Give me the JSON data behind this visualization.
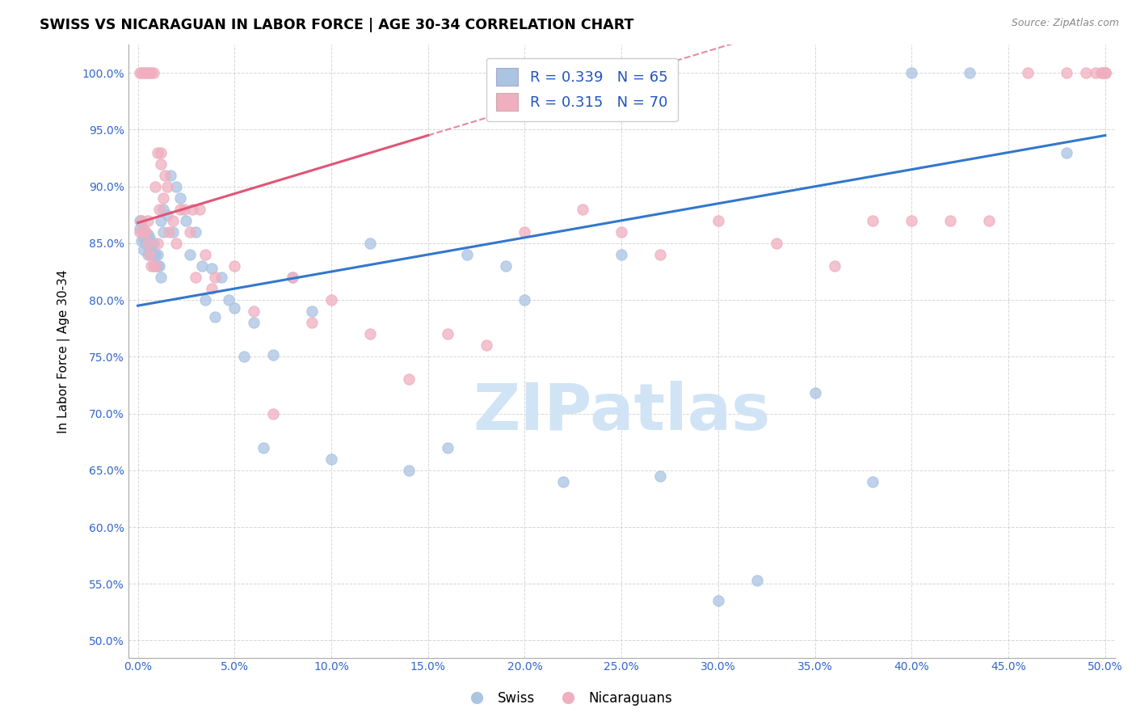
{
  "title": "SWISS VS NICARAGUAN IN LABOR FORCE | AGE 30-34 CORRELATION CHART",
  "source": "Source: ZipAtlas.com",
  "ylabel": "In Labor Force | Age 30-34",
  "xlim": [
    -0.005,
    0.505
  ],
  "ylim": [
    0.485,
    1.025
  ],
  "xticks": [
    0.0,
    0.05,
    0.1,
    0.15,
    0.2,
    0.25,
    0.3,
    0.35,
    0.4,
    0.45,
    0.5
  ],
  "ytick_positions": [
    0.5,
    0.55,
    0.6,
    0.65,
    0.7,
    0.75,
    0.8,
    0.85,
    0.9,
    0.95,
    1.0
  ],
  "ytick_labels": [
    "50.0%",
    "55.0%",
    "60.0%",
    "65.0%",
    "70.0%",
    "75.0%",
    "80.0%",
    "85.0%",
    "90.0%",
    "95.0%",
    "100.0%"
  ],
  "xtick_labels": [
    "0.0%",
    "5.0%",
    "10.0%",
    "15.0%",
    "20.0%",
    "25.0%",
    "30.0%",
    "35.0%",
    "40.0%",
    "45.0%",
    "50.0%"
  ],
  "blue_R": 0.339,
  "blue_N": 65,
  "pink_R": 0.315,
  "pink_N": 70,
  "blue_color": "#aac4e2",
  "pink_color": "#f0afc0",
  "blue_line_color": "#3377cc",
  "pink_line_color": "#e05575",
  "legend_R_color": "#2255bb",
  "watermark": "ZIPatlas",
  "watermark_color": "#d0e4f5",
  "blue_line_x0": 0.0,
  "blue_line_y0": 0.795,
  "blue_line_x1": 0.5,
  "blue_line_y1": 0.945,
  "pink_line_x0": 0.0,
  "pink_line_y0": 0.868,
  "pink_line_x1": 0.15,
  "pink_line_y1": 0.945,
  "blue_x": [
    0.001,
    0.001,
    0.002,
    0.002,
    0.003,
    0.003,
    0.003,
    0.004,
    0.004,
    0.005,
    0.005,
    0.005,
    0.006,
    0.006,
    0.007,
    0.007,
    0.008,
    0.008,
    0.009,
    0.009,
    0.01,
    0.01,
    0.011,
    0.012,
    0.012,
    0.013,
    0.013,
    0.015,
    0.017,
    0.018,
    0.02,
    0.022,
    0.025,
    0.027,
    0.03,
    0.033,
    0.035,
    0.038,
    0.04,
    0.043,
    0.047,
    0.05,
    0.055,
    0.06,
    0.065,
    0.07,
    0.08,
    0.09,
    0.1,
    0.12,
    0.14,
    0.16,
    0.17,
    0.19,
    0.2,
    0.22,
    0.25,
    0.27,
    0.3,
    0.32,
    0.35,
    0.38,
    0.4,
    0.43,
    0.48
  ],
  "blue_y": [
    0.863,
    0.87,
    0.852,
    0.87,
    0.844,
    0.855,
    0.862,
    0.85,
    0.858,
    0.84,
    0.85,
    0.858,
    0.845,
    0.855,
    0.84,
    0.85,
    0.84,
    0.85,
    0.83,
    0.84,
    0.83,
    0.84,
    0.83,
    0.82,
    0.87,
    0.86,
    0.88,
    0.875,
    0.91,
    0.86,
    0.9,
    0.89,
    0.87,
    0.84,
    0.86,
    0.83,
    0.8,
    0.828,
    0.785,
    0.82,
    0.8,
    0.793,
    0.75,
    0.78,
    0.67,
    0.752,
    0.82,
    0.79,
    0.66,
    0.85,
    0.65,
    0.67,
    0.84,
    0.83,
    0.8,
    0.64,
    0.84,
    0.645,
    0.535,
    0.553,
    0.718,
    0.64,
    1.0,
    1.0,
    0.93
  ],
  "pink_x": [
    0.001,
    0.001,
    0.002,
    0.002,
    0.003,
    0.003,
    0.004,
    0.004,
    0.005,
    0.005,
    0.005,
    0.006,
    0.006,
    0.007,
    0.007,
    0.008,
    0.008,
    0.009,
    0.009,
    0.01,
    0.01,
    0.011,
    0.012,
    0.012,
    0.013,
    0.014,
    0.015,
    0.016,
    0.018,
    0.02,
    0.022,
    0.024,
    0.027,
    0.028,
    0.03,
    0.032,
    0.035,
    0.038,
    0.04,
    0.05,
    0.06,
    0.07,
    0.08,
    0.09,
    0.1,
    0.12,
    0.14,
    0.16,
    0.18,
    0.2,
    0.23,
    0.25,
    0.27,
    0.3,
    0.33,
    0.36,
    0.38,
    0.4,
    0.42,
    0.44,
    0.46,
    0.48,
    0.49,
    0.495,
    0.498,
    0.499,
    0.499,
    0.5,
    0.5,
    0.5
  ],
  "pink_y": [
    0.86,
    1.0,
    0.87,
    1.0,
    0.86,
    1.0,
    0.86,
    1.0,
    0.85,
    0.87,
    1.0,
    0.84,
    1.0,
    0.83,
    1.0,
    0.83,
    1.0,
    0.83,
    0.9,
    0.85,
    0.93,
    0.88,
    0.92,
    0.93,
    0.89,
    0.91,
    0.9,
    0.86,
    0.87,
    0.85,
    0.88,
    0.88,
    0.86,
    0.88,
    0.82,
    0.88,
    0.84,
    0.81,
    0.82,
    0.83,
    0.79,
    0.7,
    0.82,
    0.78,
    0.8,
    0.77,
    0.73,
    0.77,
    0.76,
    0.86,
    0.88,
    0.86,
    0.84,
    0.87,
    0.85,
    0.83,
    0.87,
    0.87,
    0.87,
    0.87,
    1.0,
    1.0,
    1.0,
    1.0,
    1.0,
    1.0,
    1.0,
    1.0,
    1.0,
    1.0
  ]
}
